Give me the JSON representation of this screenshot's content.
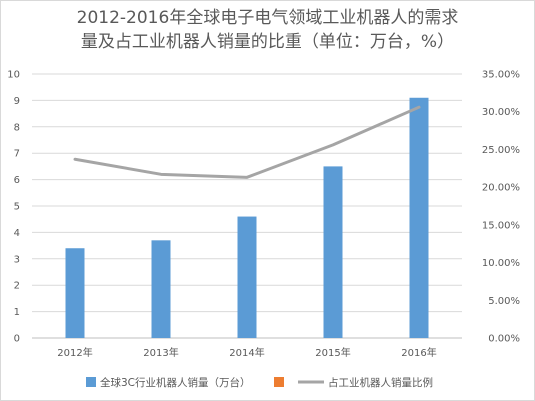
{
  "chart_data": {
    "type": "bar",
    "title": [
      "2012-2016年全球电子电气领域工业机器人的需求",
      "量及占工业机器人销量的比重（单位：万台，%）"
    ],
    "categories": [
      "2012年",
      "2013年",
      "2014年",
      "2015年",
      "2016年"
    ],
    "series": [
      {
        "name": "全球3C行业机器人销量（万台）",
        "type": "bar",
        "axis": "left",
        "color": "#5b9bd5",
        "values": [
          3.4,
          3.7,
          4.6,
          6.5,
          9.1
        ]
      },
      {
        "name": "占工业机器人销量比例",
        "type": "line",
        "axis": "right",
        "color": "#a5a5a5",
        "values": [
          23.7,
          21.7,
          21.3,
          25.6,
          30.6
        ]
      }
    ],
    "hidden_legend_swatch_color": "#ed7d31",
    "y_left": {
      "ylim": [
        0,
        10
      ],
      "ticks": [
        "0",
        "1",
        "2",
        "3",
        "4",
        "5",
        "6",
        "7",
        "8",
        "9",
        "10"
      ]
    },
    "y_right": {
      "ylim": [
        0,
        35
      ],
      "ticks": [
        "0.00%",
        "5.00%",
        "10.00%",
        "15.00%",
        "20.00%",
        "25.00%",
        "30.00%",
        "35.00%"
      ]
    },
    "gridlines": true,
    "legend_position": "bottom"
  }
}
